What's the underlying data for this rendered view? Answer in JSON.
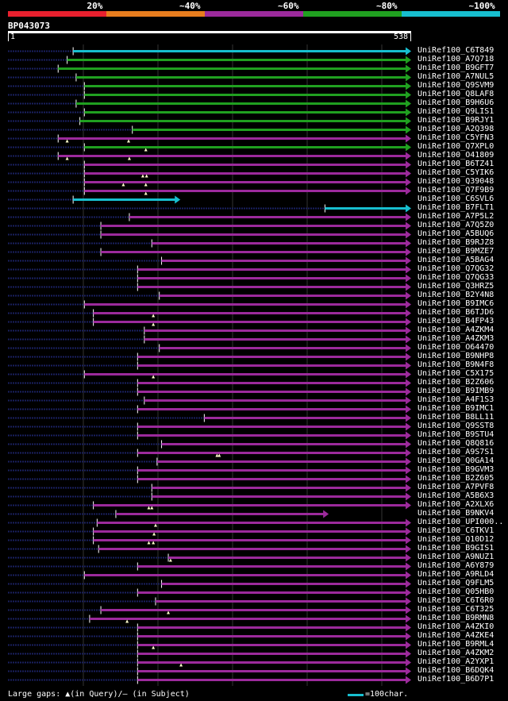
{
  "legend": [
    {
      "label": "20%",
      "color": "#e8202e"
    },
    {
      "label": "~40%",
      "color": "#e87d1e"
    },
    {
      "label": "~60%",
      "color": "#9c2a9c"
    },
    {
      "label": "~80%",
      "color": "#20a020"
    },
    {
      "label": "~100%",
      "color": "#17becf"
    }
  ],
  "query": {
    "name": "BP043073",
    "start": "1",
    "end": "538",
    "length": 538
  },
  "footer": {
    "gaps_text": "Large gaps: ▲(in Query)/– (in Subject)",
    "scale_text": "=100char."
  },
  "colors": {
    "background": "#000000",
    "dotted": "#1a2a5a",
    "dark_line": "#1a2060",
    "grid": "#333333"
  },
  "chart_data": {
    "type": "alignment",
    "query_length": 538,
    "hits": [
      {
        "name": "UniRef100_C6T849",
        "start": 88,
        "end": 538,
        "dotstart": 1,
        "color": "#17becf",
        "arrow": "r",
        "gaps": []
      },
      {
        "name": "UniRef100_A7Q718",
        "start": 80,
        "end": 538,
        "dotstart": 1,
        "color": "#20a020",
        "arrow": "r",
        "gaps": []
      },
      {
        "name": "UniRef100_B9GFT7",
        "start": 68,
        "end": 538,
        "dotstart": 1,
        "color": "#20a020",
        "arrow": "r",
        "gaps": []
      },
      {
        "name": "UniRef100_A7NUL5",
        "start": 92,
        "end": 538,
        "dotstart": 1,
        "color": "#20a020",
        "arrow": "r",
        "gaps": []
      },
      {
        "name": "UniRef100_Q9SVM9",
        "start": 103,
        "end": 538,
        "dotstart": 1,
        "color": "#20a020",
        "arrow": "r",
        "gaps": []
      },
      {
        "name": "UniRef100_Q8LAF8",
        "start": 103,
        "end": 538,
        "dotstart": 1,
        "color": "#20a020",
        "arrow": "r",
        "gaps": []
      },
      {
        "name": "UniRef100_B9H6U6",
        "start": 92,
        "end": 538,
        "dotstart": 1,
        "color": "#20a020",
        "arrow": "r",
        "gaps": []
      },
      {
        "name": "UniRef100_Q9LIS1",
        "start": 103,
        "end": 538,
        "dotstart": 1,
        "color": "#20a020",
        "arrow": "r",
        "gaps": []
      },
      {
        "name": "UniRef100_B9RJY1",
        "start": 97,
        "end": 538,
        "dotstart": 1,
        "color": "#20a020",
        "arrow": "r",
        "gaps": []
      },
      {
        "name": "UniRef100_A2Q398",
        "start": 167,
        "end": 538,
        "dotstart": 1,
        "color": "#20a020",
        "arrow": "r",
        "gaps": []
      },
      {
        "name": "UniRef100_C5YFN3",
        "start": 68,
        "end": 538,
        "dotstart": 1,
        "color": "#9c2a9c",
        "arrow": "r",
        "gaps": [
          80,
          162
        ]
      },
      {
        "name": "UniRef100_Q7XPL0",
        "start": 103,
        "end": 538,
        "dotstart": 1,
        "color": "#20a020",
        "arrow": "r",
        "gaps": [
          185
        ]
      },
      {
        "name": "UniRef100_O41809",
        "start": 68,
        "end": 538,
        "dotstart": 1,
        "color": "#9c2a9c",
        "arrow": "r",
        "gaps": [
          80,
          163
        ]
      },
      {
        "name": "UniRef100_B6TZ41",
        "start": 103,
        "end": 538,
        "dotstart": 1,
        "color": "#9c2a9c",
        "arrow": "r",
        "gaps": []
      },
      {
        "name": "UniRef100_C5YIK6",
        "start": 103,
        "end": 538,
        "dotstart": 1,
        "color": "#9c2a9c",
        "arrow": "r",
        "gaps": [
          181,
          186
        ]
      },
      {
        "name": "UniRef100_Q39048",
        "start": 103,
        "end": 538,
        "dotstart": 1,
        "color": "#9c2a9c",
        "arrow": "r",
        "gaps": [
          155,
          185
        ]
      },
      {
        "name": "UniRef100_Q7F9B9",
        "start": 103,
        "end": 538,
        "dotstart": 1,
        "color": "#9c2a9c",
        "arrow": "r",
        "gaps": [
          185
        ]
      },
      {
        "name": "UniRef100_C6SVL6",
        "start": 88,
        "end": 230,
        "dotstart": 1,
        "color": "#17becf",
        "arrow": "r",
        "gaps": []
      },
      {
        "name": "UniRef100_B7FLT1",
        "start": 424,
        "end": 538,
        "dotstart": 1,
        "color": "#17becf",
        "arrow": "r",
        "gaps": []
      },
      {
        "name": "UniRef100_A7P5L2",
        "start": 163,
        "end": 538,
        "dotstart": 1,
        "color": "#9c2a9c",
        "arrow": "r",
        "gaps": []
      },
      {
        "name": "UniRef100_A7Q5Z0",
        "start": 125,
        "end": 538,
        "dotstart": 1,
        "color": "#9c2a9c",
        "arrow": "r",
        "gaps": []
      },
      {
        "name": "UniRef100_A5BUQ6",
        "start": 125,
        "end": 538,
        "dotstart": 1,
        "color": "#9c2a9c",
        "arrow": "r",
        "gaps": []
      },
      {
        "name": "UniRef100_B9RJZ8",
        "start": 193,
        "end": 538,
        "dotstart": 1,
        "color": "#9c2a9c",
        "arrow": "r",
        "gaps": []
      },
      {
        "name": "UniRef100_B9MZE7",
        "start": 125,
        "end": 538,
        "dotstart": 1,
        "color": "#9c2a9c",
        "arrow": "r",
        "gaps": []
      },
      {
        "name": "UniRef100_A5BAG4",
        "start": 206,
        "end": 538,
        "dotstart": 1,
        "color": "#9c2a9c",
        "arrow": "r",
        "gaps": []
      },
      {
        "name": "UniRef100_Q7QG32",
        "start": 174,
        "end": 538,
        "dotstart": 1,
        "color": "#9c2a9c",
        "arrow": "r",
        "gaps": []
      },
      {
        "name": "UniRef100_Q7QG33",
        "start": 174,
        "end": 538,
        "dotstart": 1,
        "color": "#9c2a9c",
        "arrow": "r",
        "gaps": []
      },
      {
        "name": "UniRef100_Q3HRZ5",
        "start": 174,
        "end": 538,
        "dotstart": 1,
        "color": "#9c2a9c",
        "arrow": "r",
        "gaps": []
      },
      {
        "name": "UniRef100_B2Y4N8",
        "start": 203,
        "end": 538,
        "dotstart": 1,
        "color": "#9c2a9c",
        "arrow": "r",
        "gaps": []
      },
      {
        "name": "UniRef100_B9IMC6",
        "start": 103,
        "end": 538,
        "dotstart": 1,
        "color": "#9c2a9c",
        "arrow": "r",
        "gaps": []
      },
      {
        "name": "UniRef100_B6TJD6",
        "start": 115,
        "end": 538,
        "dotstart": 1,
        "color": "#9c2a9c",
        "arrow": "r",
        "gaps": [
          195
        ]
      },
      {
        "name": "UniRef100_B4FP43",
        "start": 115,
        "end": 538,
        "dotstart": 1,
        "color": "#9c2a9c",
        "arrow": "r",
        "gaps": [
          195
        ]
      },
      {
        "name": "UniRef100_A4ZKM4",
        "start": 183,
        "end": 538,
        "dotstart": 1,
        "color": "#9c2a9c",
        "arrow": "r",
        "gaps": []
      },
      {
        "name": "UniRef100_A4ZKM3",
        "start": 183,
        "end": 538,
        "dotstart": 1,
        "color": "#9c2a9c",
        "arrow": "r",
        "gaps": []
      },
      {
        "name": "UniRef100_O64470",
        "start": 203,
        "end": 538,
        "dotstart": 1,
        "color": "#9c2a9c",
        "arrow": "r",
        "gaps": []
      },
      {
        "name": "UniRef100_B9NHP8",
        "start": 174,
        "end": 538,
        "dotstart": 1,
        "color": "#9c2a9c",
        "arrow": "r",
        "gaps": []
      },
      {
        "name": "UniRef100_B9N4F8",
        "start": 174,
        "end": 538,
        "dotstart": 1,
        "color": "#9c2a9c",
        "arrow": "r",
        "gaps": []
      },
      {
        "name": "UniRef100_C5X175",
        "start": 103,
        "end": 538,
        "dotstart": 1,
        "color": "#9c2a9c",
        "arrow": "r",
        "gaps": [
          195
        ]
      },
      {
        "name": "UniRef100_B2Z606",
        "start": 174,
        "end": 538,
        "dotstart": 1,
        "color": "#9c2a9c",
        "arrow": "r",
        "gaps": []
      },
      {
        "name": "UniRef100_B9IMB9",
        "start": 174,
        "end": 538,
        "dotstart": 1,
        "color": "#9c2a9c",
        "arrow": "r",
        "gaps": []
      },
      {
        "name": "UniRef100_A4F1S3",
        "start": 183,
        "end": 538,
        "dotstart": 1,
        "color": "#9c2a9c",
        "arrow": "r",
        "gaps": []
      },
      {
        "name": "UniRef100_B9IMC1",
        "start": 174,
        "end": 538,
        "dotstart": 1,
        "color": "#9c2a9c",
        "arrow": "r",
        "gaps": []
      },
      {
        "name": "UniRef100_B8LL11",
        "start": 263,
        "end": 538,
        "dotstart": 1,
        "color": "#9c2a9c",
        "arrow": "r",
        "gaps": []
      },
      {
        "name": "UniRef100_Q9SST8",
        "start": 174,
        "end": 538,
        "dotstart": 1,
        "color": "#9c2a9c",
        "arrow": "r",
        "gaps": []
      },
      {
        "name": "UniRef100_B9STU4",
        "start": 174,
        "end": 538,
        "dotstart": 1,
        "color": "#9c2a9c",
        "arrow": "r",
        "gaps": []
      },
      {
        "name": "UniRef100_Q8Q816",
        "start": 206,
        "end": 538,
        "dotstart": 1,
        "color": "#9c2a9c",
        "arrow": "r",
        "gaps": []
      },
      {
        "name": "UniRef100_A9S7S1",
        "start": 174,
        "end": 538,
        "dotstart": 1,
        "color": "#9c2a9c",
        "arrow": "r",
        "gaps": [
          280,
          283
        ]
      },
      {
        "name": "UniRef100_Q0GA14",
        "start": 200,
        "end": 538,
        "dotstart": 1,
        "color": "#9c2a9c",
        "arrow": "r",
        "gaps": []
      },
      {
        "name": "UniRef100_B9GVM3",
        "start": 174,
        "end": 538,
        "dotstart": 1,
        "color": "#9c2a9c",
        "arrow": "r",
        "gaps": []
      },
      {
        "name": "UniRef100_B2Z605",
        "start": 174,
        "end": 538,
        "dotstart": 1,
        "color": "#9c2a9c",
        "arrow": "r",
        "gaps": []
      },
      {
        "name": "UniRef100_A7PVF8",
        "start": 193,
        "end": 538,
        "dotstart": 1,
        "color": "#9c2a9c",
        "arrow": "r",
        "gaps": []
      },
      {
        "name": "UniRef100_A5B6X3",
        "start": 193,
        "end": 538,
        "dotstart": 1,
        "color": "#9c2a9c",
        "arrow": "r",
        "gaps": []
      },
      {
        "name": "UniRef100_A2XLX6",
        "start": 115,
        "end": 538,
        "dotstart": 1,
        "color": "#9c2a9c",
        "arrow": "r",
        "gaps": [
          189,
          193
        ]
      },
      {
        "name": "UniRef100_B9NKV4",
        "start": 145,
        "end": 428,
        "dotstart": 1,
        "color": "#9c2a9c",
        "arrow": "r",
        "gaps": []
      },
      {
        "name": "UniRef100_UPI000..",
        "start": 120,
        "end": 538,
        "dotstart": 1,
        "color": "#9c2a9c",
        "arrow": "r",
        "gaps": [
          198
        ]
      },
      {
        "name": "UniRef100_C6TKV1",
        "start": 115,
        "end": 538,
        "dotstart": 1,
        "color": "#9c2a9c",
        "arrow": "r",
        "gaps": [
          196
        ]
      },
      {
        "name": "UniRef100_Q10D12",
        "start": 115,
        "end": 538,
        "dotstart": 1,
        "color": "#9c2a9c",
        "arrow": "r",
        "gaps": [
          189,
          195
        ]
      },
      {
        "name": "UniRef100_B9GIS1",
        "start": 122,
        "end": 538,
        "dotstart": 1,
        "color": "#9c2a9c",
        "arrow": "r",
        "gaps": []
      },
      {
        "name": "UniRef100_A9NUZ1",
        "start": 215,
        "end": 538,
        "dotstart": 1,
        "color": "#9c2a9c",
        "arrow": "r",
        "gaps": [
          218
        ]
      },
      {
        "name": "UniRef100_A6Y879",
        "start": 174,
        "end": 538,
        "dotstart": 1,
        "color": "#9c2a9c",
        "arrow": "r",
        "gaps": []
      },
      {
        "name": "UniRef100_A9RLD4",
        "start": 103,
        "end": 538,
        "dotstart": 1,
        "color": "#9c2a9c",
        "arrow": "r",
        "gaps": []
      },
      {
        "name": "UniRef100_Q9FLM5",
        "start": 206,
        "end": 538,
        "dotstart": 1,
        "color": "#9c2a9c",
        "arrow": "r",
        "gaps": []
      },
      {
        "name": "UniRef100_Q05HB0",
        "start": 174,
        "end": 538,
        "dotstart": 1,
        "color": "#9c2a9c",
        "arrow": "r",
        "gaps": []
      },
      {
        "name": "UniRef100_C6T6R0",
        "start": 198,
        "end": 538,
        "dotstart": 1,
        "color": "#9c2a9c",
        "arrow": "r",
        "gaps": []
      },
      {
        "name": "UniRef100_C6T325",
        "start": 125,
        "end": 538,
        "dotstart": 1,
        "color": "#9c2a9c",
        "arrow": "r",
        "gaps": [
          215
        ]
      },
      {
        "name": "UniRef100_B9RMN8",
        "start": 110,
        "end": 538,
        "dotstart": 1,
        "color": "#9c2a9c",
        "arrow": "r",
        "gaps": [
          160
        ]
      },
      {
        "name": "UniRef100_A4ZKI0",
        "start": 174,
        "end": 538,
        "dotstart": 1,
        "color": "#9c2a9c",
        "arrow": "r",
        "gaps": []
      },
      {
        "name": "UniRef100_A4ZKE4",
        "start": 174,
        "end": 538,
        "dotstart": 1,
        "color": "#9c2a9c",
        "arrow": "r",
        "gaps": []
      },
      {
        "name": "UniRef100_B9RML4",
        "start": 174,
        "end": 538,
        "dotstart": 1,
        "color": "#9c2a9c",
        "arrow": "r",
        "gaps": [
          195
        ]
      },
      {
        "name": "UniRef100_A4ZKM2",
        "start": 174,
        "end": 538,
        "dotstart": 1,
        "color": "#9c2a9c",
        "arrow": "r",
        "gaps": []
      },
      {
        "name": "UniRef100_A2YXP1",
        "start": 174,
        "end": 538,
        "dotstart": 1,
        "color": "#9c2a9c",
        "arrow": "r",
        "gaps": [
          232
        ]
      },
      {
        "name": "UniRef100_B6DQK4",
        "start": 174,
        "end": 538,
        "dotstart": 1,
        "color": "#9c2a9c",
        "arrow": "r",
        "gaps": []
      },
      {
        "name": "UniRef100_B6D7P1",
        "start": 174,
        "end": 538,
        "dotstart": 1,
        "color": "#9c2a9c",
        "arrow": "r",
        "gaps": []
      }
    ]
  }
}
